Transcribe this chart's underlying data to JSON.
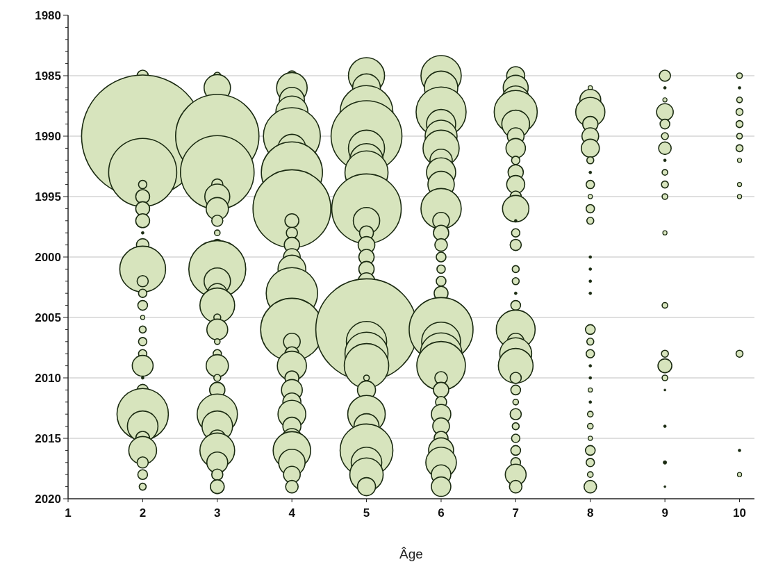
{
  "chart_data": {
    "type": "bubble",
    "xlabel": "Âge",
    "xlim": [
      1,
      10.2
    ],
    "xticks": [
      1,
      2,
      3,
      4,
      5,
      6,
      7,
      8,
      9,
      10
    ],
    "ylim": [
      2020,
      1980
    ],
    "yticks": [
      1980,
      {
        "value": 1981,
        "label": null
      },
      {
        "value": 1982,
        "label": null
      },
      {
        "value": 1983,
        "label": null
      },
      {
        "value": 1984,
        "label": null
      },
      1985,
      {
        "value": 1986,
        "label": null
      },
      {
        "value": 1987,
        "label": null
      },
      {
        "value": 1988,
        "label": null
      },
      {
        "value": 1989,
        "label": null
      },
      1990,
      {
        "value": 1991,
        "label": null
      },
      {
        "value": 1992,
        "label": null
      },
      {
        "value": 1993,
        "label": null
      },
      {
        "value": 1994,
        "label": null
      },
      1995,
      {
        "value": 1996,
        "label": null
      },
      {
        "value": 1997,
        "label": null
      },
      {
        "value": 1998,
        "label": null
      },
      {
        "value": 1999,
        "label": null
      },
      2000,
      {
        "value": 2001,
        "label": null
      },
      {
        "value": 2002,
        "label": null
      },
      {
        "value": 2003,
        "label": null
      },
      {
        "value": 2004,
        "label": null
      },
      2005,
      {
        "value": 2006,
        "label": null
      },
      {
        "value": 2007,
        "label": null
      },
      {
        "value": 2008,
        "label": null
      },
      {
        "value": 2009,
        "label": null
      },
      2010,
      {
        "value": 2011,
        "label": null
      },
      {
        "value": 2012,
        "label": null
      },
      {
        "value": 2013,
        "label": null
      },
      {
        "value": 2014,
        "label": null
      },
      2015,
      {
        "value": 2016,
        "label": null
      },
      {
        "value": 2017,
        "label": null
      },
      {
        "value": 2018,
        "label": null
      },
      {
        "value": 2019,
        "label": null
      },
      2020
    ],
    "grid": "y",
    "series": [
      {
        "colors": [
          "#d7e4bd",
          "#d7e4bd",
          "#d7e4bd",
          "#d7e4bd",
          "#d7e4bd",
          "#d7e4bd",
          "#d7e4bd",
          "#1b2b12",
          "#d7e4bd",
          "#d7e4bd",
          "#d7e4bd",
          "#d7e4bd",
          "#d7e4bd",
          "#d7e4bd",
          "#d7e4bd",
          "#d7e4bd",
          "#d7e4bd",
          "#d7e4bd",
          "#1b2b12",
          "#d7e4bd",
          "#d7e4bd",
          "#d7e4bd",
          "#d7e4bd",
          "#d7e4bd",
          "#d7e4bd",
          "#d7e4bd",
          "#d7e4bd"
        ],
        "x": [
          2,
          2,
          2,
          2,
          2,
          2,
          2,
          2,
          2,
          2,
          2,
          2,
          2,
          2,
          2,
          2,
          2,
          2,
          2,
          2,
          2,
          2,
          2,
          2,
          2,
          2,
          2
        ],
        "values": [
          1985,
          1990,
          1993,
          1994,
          1995,
          1996,
          1997,
          1998,
          1999,
          2001,
          2002,
          2003,
          2004,
          2005,
          2006,
          2007,
          2008,
          2009,
          2010,
          2011,
          2013,
          2014,
          2015,
          2016,
          2017,
          2018,
          2019
        ],
        "sizes": [
          0.0083,
          1,
          0.3101,
          0.0046,
          0.0129,
          0.0129,
          0.0129,
          0.0005,
          0.0105,
          0.1406,
          0.0083,
          0.0046,
          0.0063,
          0.0012,
          0.0032,
          0.0046,
          0.0046,
          0.0291,
          0.0005,
          0.0083,
          0.1768,
          0.0625,
          0.0129,
          0.0517,
          0.0083,
          0.0063,
          0.0032
        ]
      },
      {
        "color": "#d7e4bd",
        "x": [
          3,
          3,
          3,
          3,
          3,
          3,
          3,
          3,
          3,
          3,
          3,
          3,
          3,
          3,
          3,
          3,
          3,
          3,
          3,
          3,
          3,
          3,
          3,
          3,
          3,
          3,
          3,
          3
        ],
        "values": [
          1985,
          1986,
          1990,
          1993,
          1994,
          1995,
          1996,
          1997,
          1998,
          1999,
          2001,
          2002,
          2003,
          2004,
          2005,
          2006,
          2007,
          2008,
          2009,
          2010,
          2011,
          2013,
          2014,
          2015,
          2016,
          2017,
          2018,
          2019
        ],
        "sizes": [
          0.0032,
          0.0466,
          0.4649,
          0.3627,
          0.0083,
          0.0418,
          0.0331,
          0.0083,
          0.0021,
          0.0083,
          0.2171,
          0.0466,
          0.0253,
          0.0807,
          0.0032,
          0.0291,
          0.0021,
          0.0046,
          0.0331,
          0.0032,
          0.0156,
          0.1086,
          0.0625,
          0.0186,
          0.0807,
          0.0291,
          0.0083,
          0.0129
        ]
      },
      {
        "color": "#d7e4bd",
        "x": [
          4,
          4,
          4,
          4,
          4,
          4,
          4,
          4,
          4,
          4,
          4,
          4,
          4,
          4,
          4,
          4,
          4,
          4,
          4,
          4,
          4,
          4,
          4,
          4,
          4,
          4,
          4,
          4
        ],
        "values": [
          1985,
          1986,
          1987,
          1988,
          1990,
          1991,
          1993,
          1996,
          1997,
          1998,
          1999,
          2000,
          2001,
          2003,
          2006,
          2007,
          2008,
          2009,
          2010,
          2011,
          2012,
          2013,
          2014,
          2015,
          2016,
          2017,
          2018,
          2019
        ],
        "sizes": [
          0.0063,
          0.0625,
          0.0418,
          0.0683,
          0.2171,
          0.0517,
          0.25,
          0.405,
          0.0129,
          0.0083,
          0.0156,
          0.0186,
          0.0517,
          0.1768,
          0.2615,
          0.0186,
          0.0129,
          0.0569,
          0.0129,
          0.0291,
          0.0218,
          0.0517,
          0.0218,
          0.0253,
          0.0941,
          0.0466,
          0.0186,
          0.0105
        ]
      },
      {
        "color": "#d7e4bd",
        "x": [
          5,
          5,
          5,
          5,
          5,
          5,
          5,
          5,
          5,
          5,
          5,
          5,
          5,
          5,
          5,
          5,
          5,
          5,
          5,
          5,
          5,
          5,
          5,
          5,
          5,
          5
        ],
        "values": [
          1985,
          1986,
          1988,
          1990,
          1991,
          1992,
          1993,
          1996,
          1997,
          1998,
          1999,
          2000,
          2001,
          2002,
          2006,
          2007,
          2008,
          2009,
          2010,
          2011,
          2013,
          2014,
          2016,
          2017,
          2018,
          2019
        ],
        "sizes": [
          0.0873,
          0.0517,
          0.1865,
          0.3359,
          0.0873,
          0.0744,
          0.1241,
          0.3228,
          0.0466,
          0.0129,
          0.0186,
          0.0156,
          0.0156,
          0.0186,
          0.6882,
          0.1086,
          0.1241,
          0.1322,
          0.0021,
          0.0218,
          0.0941,
          0.0418,
          0.1865,
          0.0625,
          0.0744,
          0.0218
        ]
      },
      {
        "color": "#d7e4bd",
        "x": [
          6,
          6,
          6,
          6,
          6,
          6,
          6,
          6,
          6,
          6,
          6,
          6,
          6,
          6,
          6,
          6,
          6,
          6,
          6,
          6,
          6,
          6,
          6,
          6,
          6,
          6,
          6,
          6,
          6,
          6,
          6
        ],
        "values": [
          1985,
          1986,
          1988,
          1989,
          1990,
          1991,
          1992,
          1993,
          1994,
          1996,
          1997,
          1998,
          1999,
          2000,
          2001,
          2002,
          2003,
          2006,
          2007,
          2008,
          2009,
          2010,
          2011,
          2012,
          2013,
          2014,
          2015,
          2016,
          2017,
          2018,
          2019
        ],
        "sizes": [
          0.1086,
          0.0744,
          0.1674,
          0.0569,
          0.0683,
          0.0873,
          0.0331,
          0.0569,
          0.0466,
          0.1086,
          0.0186,
          0.0156,
          0.0105,
          0.0063,
          0.0046,
          0.0063,
          0.0129,
          0.2732,
          0.1012,
          0.1162,
          0.1582,
          0.0105,
          0.0156,
          0.0083,
          0.0253,
          0.0186,
          0.0129,
          0.0418,
          0.0625,
          0.0253,
          0.0253
        ]
      },
      {
        "colors": [
          "#d7e4bd",
          "#d7e4bd",
          "#d7e4bd",
          "#d7e4bd",
          "#d7e4bd",
          "#d7e4bd",
          "#d7e4bd",
          "#d7e4bd",
          "#d7e4bd",
          "#d7e4bd",
          "#d7e4bd",
          "#d7e4bd",
          "#1b2b12",
          "#d7e4bd",
          "#d7e4bd",
          "#d7e4bd",
          "#d7e4bd",
          "#1b2b12",
          "#d7e4bd",
          "#d7e4bd",
          "#d7e4bd",
          "#d7e4bd",
          "#d7e4bd",
          "#d7e4bd",
          "#d7e4bd",
          "#d7e4bd",
          "#d7e4bd",
          "#d7e4bd",
          "#d7e4bd",
          "#d7e4bd",
          "#d7e4bd",
          "#d7e4bd",
          "#d7e4bd"
        ],
        "x": [
          7,
          7,
          7,
          7,
          7,
          7,
          7,
          7,
          7,
          7,
          7,
          7,
          7,
          7,
          7,
          7,
          7,
          7,
          7,
          7,
          7,
          7,
          7,
          7,
          7,
          7,
          7,
          7,
          7,
          7,
          7,
          7,
          7
        ],
        "values": [
          1985,
          1986,
          1987,
          1988,
          1989,
          1990,
          1991,
          1992,
          1993,
          1994,
          1995,
          1996,
          1997,
          1998,
          1999,
          2001,
          2002,
          2003,
          2004,
          2006,
          2007,
          2008,
          2009,
          2010,
          2011,
          2012,
          2013,
          2014,
          2015,
          2016,
          2017,
          2018,
          2019
        ],
        "sizes": [
          0.0218,
          0.0418,
          0.0517,
          0.1241,
          0.0517,
          0.0186,
          0.0253,
          0.0046,
          0.0156,
          0.0218,
          0.0083,
          0.0466,
          0.0005,
          0.0046,
          0.0083,
          0.0032,
          0.0032,
          0.0005,
          0.0063,
          0.1012,
          0.0186,
          0.0683,
          0.0807,
          0.0083,
          0.0063,
          0.0021,
          0.0083,
          0.0032,
          0.0046,
          0.0063,
          0.0063,
          0.0291,
          0.0105
        ]
      },
      {
        "colors": [
          "#d7e4bd",
          "#d7e4bd",
          "#d7e4bd",
          "#d7e4bd",
          "#d7e4bd",
          "#d7e4bd",
          "#d7e4bd",
          "#1b2b12",
          "#d7e4bd",
          "#d7e4bd",
          "#d7e4bd",
          "#d7e4bd",
          "#1b2b12",
          "#1b2b12",
          "#1b2b12",
          "#1b2b12",
          "#d7e4bd",
          "#d7e4bd",
          "#d7e4bd",
          "#1b2b12",
          "#1b2b12",
          "#d7e4bd",
          "#1b2b12",
          "#d7e4bd",
          "#d7e4bd",
          "#d7e4bd",
          "#d7e4bd",
          "#d7e4bd",
          "#d7e4bd",
          "#d7e4bd"
        ],
        "x": [
          8,
          8,
          8,
          8,
          8,
          8,
          8,
          8,
          8,
          8,
          8,
          8,
          8,
          8,
          8,
          8,
          8,
          8,
          8,
          8,
          8,
          8,
          8,
          8,
          8,
          8,
          8,
          8,
          8,
          8
        ],
        "values": [
          1986,
          1987,
          1988,
          1989,
          1990,
          1991,
          1992,
          1993,
          1994,
          1995,
          1996,
          1997,
          2000,
          2001,
          2002,
          2003,
          2006,
          2007,
          2008,
          2009,
          2010,
          2011,
          2012,
          2013,
          2014,
          2015,
          2016,
          2017,
          2018,
          2019
        ],
        "sizes": [
          0.0012,
          0.0291,
          0.0569,
          0.0156,
          0.0186,
          0.0218,
          0.0032,
          0.0005,
          0.0046,
          0.0012,
          0.0046,
          0.0032,
          0.0005,
          0.0005,
          0.0005,
          0.0005,
          0.0063,
          0.0032,
          0.0046,
          0.0005,
          0.0005,
          0.0012,
          0.0005,
          0.0021,
          0.0021,
          0.0012,
          0.0063,
          0.0046,
          0.0021,
          0.0105
        ]
      },
      {
        "colors": [
          "#d7e4bd",
          "#1b2b12",
          "#d7e4bd",
          "#d7e4bd",
          "#d7e4bd",
          "#d7e4bd",
          "#d7e4bd",
          "#1b2b12",
          "#d7e4bd",
          "#d7e4bd",
          "#d7e4bd",
          "#d7e4bd",
          "#d7e4bd",
          "#d7e4bd",
          "#d7e4bd",
          "#d7e4bd",
          "#1b2b12",
          "#1b2b12",
          "#1b2b12",
          "#1b2b12"
        ],
        "x": [
          9,
          9,
          9,
          9,
          9,
          9,
          9,
          9,
          9,
          9,
          9,
          9,
          9,
          9,
          9,
          9,
          9,
          9,
          9,
          9
        ],
        "values": [
          1985,
          1986,
          1987,
          1988,
          1989,
          1990,
          1991,
          1992,
          1993,
          1994,
          1995,
          1998,
          2004,
          2008,
          2009,
          2010,
          2011,
          2014,
          2017,
          2019
        ],
        "sizes": [
          0.0083,
          0.0005,
          0.0012,
          0.0186,
          0.0063,
          0.0032,
          0.0105,
          0.0005,
          0.0021,
          0.0032,
          0.0021,
          0.0012,
          0.0021,
          0.0032,
          0.0129,
          0.0021,
          0.0003,
          0.0005,
          0.0008,
          0.0003
        ]
      },
      {
        "colors": [
          "#d7e4bd",
          "#1b2b12",
          "#d7e4bd",
          "#d7e4bd",
          "#d7e4bd",
          "#d7e4bd",
          "#d7e4bd",
          "#d7e4bd",
          "#d7e4bd",
          "#d7e4bd",
          "#d7e4bd",
          "#1b2b12",
          "#d7e4bd"
        ],
        "x": [
          10,
          10,
          10,
          10,
          10,
          10,
          10,
          10,
          10,
          10,
          10,
          10,
          10
        ],
        "values": [
          1985,
          1986,
          1987,
          1988,
          1989,
          1990,
          1991,
          1992,
          1994,
          1995,
          2008,
          2016,
          2018
        ],
        "sizes": [
          0.0021,
          0.0005,
          0.0021,
          0.0032,
          0.0032,
          0.0021,
          0.0032,
          0.0012,
          0.0012,
          0.0012,
          0.0032,
          0.0005,
          0.0012
        ]
      }
    ]
  }
}
